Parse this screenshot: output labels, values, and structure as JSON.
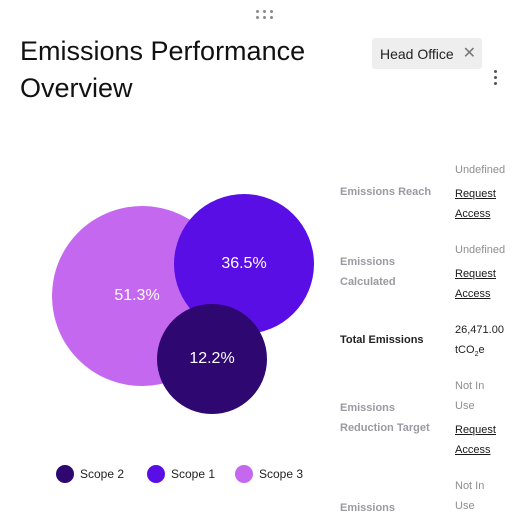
{
  "header": {
    "title": "Emissions Performance Overview",
    "filter_tag": "Head Office"
  },
  "chart_data": {
    "type": "bubble",
    "series": [
      {
        "name": "Scope 3",
        "value": 51.3,
        "label": "51.3%",
        "color": "#c468f0"
      },
      {
        "name": "Scope 1",
        "value": 36.5,
        "label": "36.5%",
        "color": "#5a0ee6"
      },
      {
        "name": "Scope 2",
        "value": 12.2,
        "label": "12.2%",
        "color": "#2e0770"
      }
    ],
    "legend_order": [
      "Scope 2",
      "Scope 1",
      "Scope 3"
    ]
  },
  "metrics": [
    {
      "label": "Emissions Reach",
      "status": "Undefined",
      "action": "Request Access"
    },
    {
      "label": "Emissions Calculated",
      "status": "Undefined",
      "action": "Request Access"
    },
    {
      "label": "Total Emissions",
      "value": "26,471.00",
      "unit": "tCO2e"
    },
    {
      "label": "Emissions Reduction Target",
      "status": "Not In Use",
      "action": "Request Access"
    },
    {
      "label": "Emissions",
      "status": "Not In Use"
    }
  ],
  "icons": {
    "drag": "drag-handle-icon",
    "close": "close-icon",
    "menu": "more-vertical-icon"
  }
}
